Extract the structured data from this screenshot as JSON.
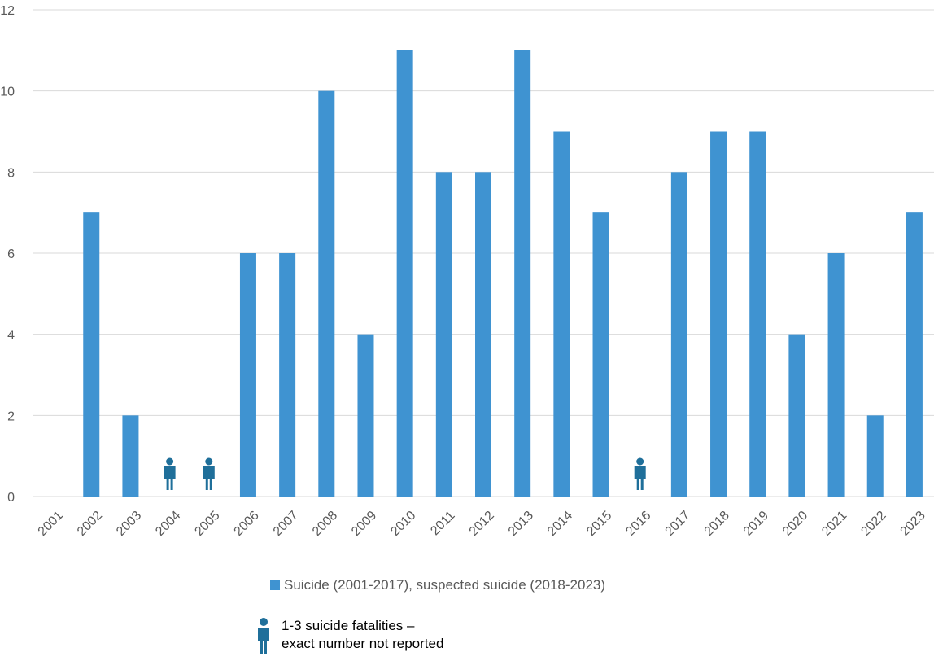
{
  "chart_data": {
    "type": "bar",
    "categories": [
      "2001",
      "2002",
      "2003",
      "2004",
      "2005",
      "2006",
      "2007",
      "2008",
      "2009",
      "2010",
      "2011",
      "2012",
      "2013",
      "2014",
      "2015",
      "2016",
      "2017",
      "2018",
      "2019",
      "2020",
      "2021",
      "2022",
      "2023"
    ],
    "series": [
      {
        "name": "Suicide (2001-2017), suspected suicide (2018-2023)",
        "values": [
          0,
          7,
          2,
          null,
          null,
          6,
          6,
          10,
          4,
          11,
          8,
          8,
          11,
          9,
          7,
          null,
          8,
          9,
          9,
          4,
          6,
          2,
          7
        ],
        "color": "#3f93d1"
      }
    ],
    "unreported_markers": [
      "2004",
      "2005",
      "2016"
    ],
    "y_ticks": [
      "0",
      "2",
      "4",
      "6",
      "8",
      "10",
      "12"
    ],
    "ylim": [
      0,
      12
    ],
    "grid": true,
    "legend_position": "bottom",
    "marker_icon": "person-icon",
    "marker_color": "#1f6f9a",
    "title": "",
    "xlabel": "",
    "ylabel": ""
  },
  "legend": {
    "series_label": "Suicide (2001-2017), suspected suicide (2018-2023)",
    "note_label": "1-3 suicide fatalities – exact number not reported"
  }
}
